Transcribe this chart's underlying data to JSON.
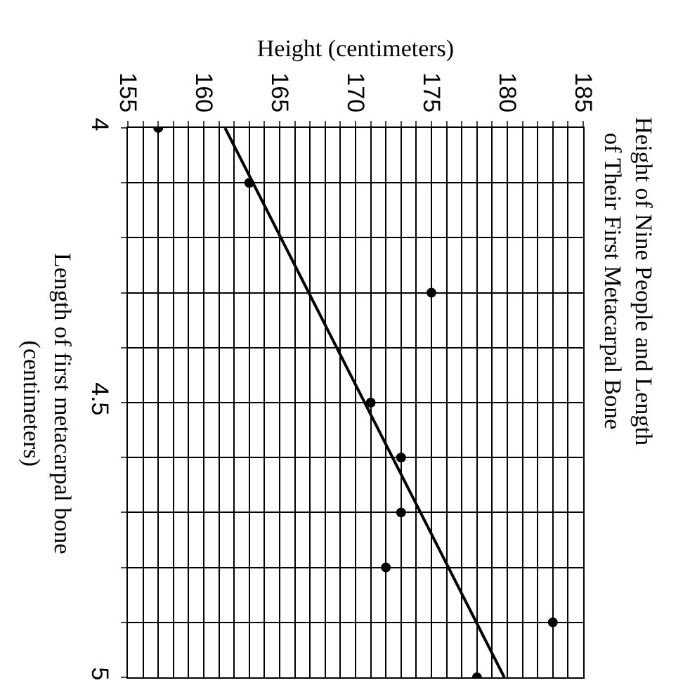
{
  "chart_data": {
    "type": "scatter",
    "title": "Height of Nine People and Length of Their First Metacarpal Bone",
    "xlabel": "Height (centimeters)",
    "ylabel": "Length of first metacarpal bone (centimeters)",
    "xlim": [
      155,
      185
    ],
    "ylim": [
      5,
      4
    ],
    "xticks": [
      155,
      {
        "value": 156,
        "label": null
      },
      {
        "value": 157,
        "label": null
      },
      {
        "value": 158,
        "label": null
      },
      {
        "value": 159,
        "label": null
      },
      160,
      {
        "value": 161,
        "label": null
      },
      {
        "value": 162,
        "label": null
      },
      {
        "value": 163,
        "label": null
      },
      {
        "value": 164,
        "label": null
      },
      165,
      {
        "value": 166,
        "label": null
      },
      {
        "value": 167,
        "label": null
      },
      {
        "value": 168,
        "label": null
      },
      {
        "value": 169,
        "label": null
      },
      170,
      {
        "value": 171,
        "label": null
      },
      {
        "value": 172,
        "label": null
      },
      {
        "value": 173,
        "label": null
      },
      {
        "value": 174,
        "label": null
      },
      175,
      {
        "value": 176,
        "label": null
      },
      {
        "value": 177,
        "label": null
      },
      {
        "value": 178,
        "label": null
      },
      {
        "value": 179,
        "label": null
      },
      180,
      {
        "value": 181,
        "label": null
      },
      {
        "value": 182,
        "label": null
      },
      {
        "value": 183,
        "label": null
      },
      {
        "value": 184,
        "label": null
      },
      185
    ],
    "yticks": [
      4,
      {
        "value": 4.1,
        "label": null
      },
      {
        "value": 4.2,
        "label": null
      },
      {
        "value": 4.3,
        "label": null
      },
      {
        "value": 4.4,
        "label": null
      },
      4.5,
      {
        "value": 4.6,
        "label": null
      },
      {
        "value": 4.7,
        "label": null
      },
      {
        "value": 4.8,
        "label": null
      },
      {
        "value": 4.9,
        "label": null
      },
      5
    ],
    "grid": true,
    "marker": "circle",
    "series": [
      {
        "color": "#000000",
        "x": [
          157,
          163,
          175,
          171,
          173,
          173,
          172,
          183,
          178
        ],
        "values": [
          4.0,
          4.1,
          4.3,
          4.5,
          4.6,
          4.7,
          4.8,
          4.9,
          5.0
        ]
      },
      {
        "type": "line",
        "color": "#000000",
        "x": [
          161.4,
          179.8
        ],
        "values": [
          4.0,
          5.0
        ],
        "marker": "none",
        "line_style": "solid"
      }
    ]
  }
}
